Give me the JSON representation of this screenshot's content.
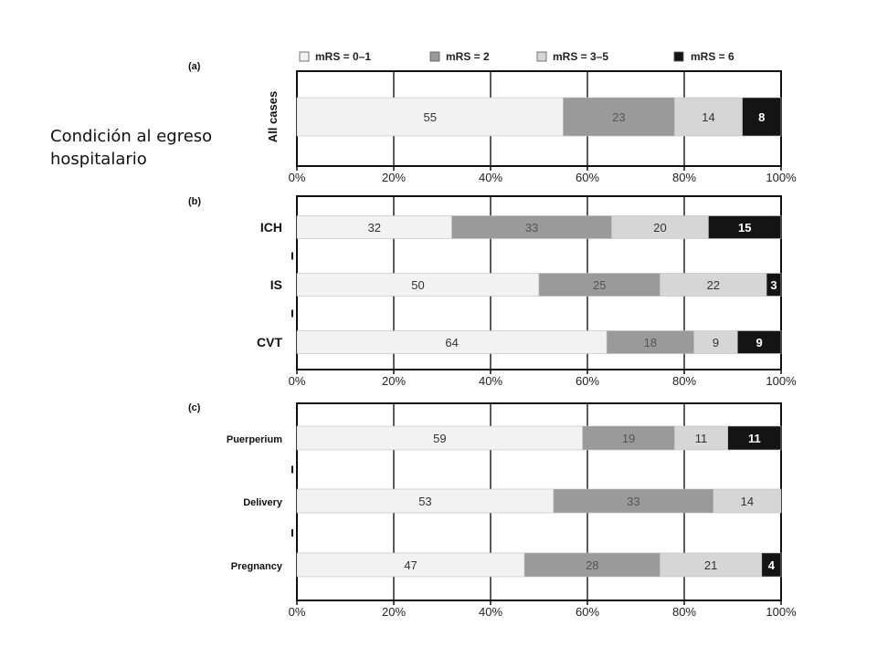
{
  "caption": {
    "line1": "Condición al egreso",
    "line2": "hospitalario"
  },
  "chart_data": {
    "type": "bar",
    "orientation": "horizontal",
    "stacked": true,
    "xlim": [
      0,
      100
    ],
    "grid": true,
    "legend_position": "top",
    "x_ticks": [
      "0%",
      "20%",
      "40%",
      "60%",
      "80%",
      "100%"
    ],
    "series_names": [
      "mRS = 0–1",
      "mRS = 2",
      "mRS = 3–5",
      "mRS = 6"
    ],
    "series_colors": [
      "#f2f2f2",
      "#9a9a9a",
      "#d6d6d6",
      "#141414"
    ],
    "panels": [
      {
        "label": "(a)",
        "categories": [
          "All cases"
        ],
        "values": [
          [
            55,
            23,
            14,
            8
          ]
        ]
      },
      {
        "label": "(b)",
        "categories": [
          "ICH",
          "IS",
          "CVT"
        ],
        "values": [
          [
            32,
            33,
            20,
            15
          ],
          [
            50,
            25,
            22,
            3
          ],
          [
            64,
            18,
            9,
            9
          ]
        ]
      },
      {
        "label": "(c)",
        "categories": [
          "Puerperium",
          "Delivery",
          "Pregnancy"
        ],
        "values": [
          [
            59,
            19,
            11,
            11
          ],
          [
            53,
            33,
            14,
            0
          ],
          [
            47,
            28,
            21,
            4
          ]
        ]
      }
    ]
  }
}
